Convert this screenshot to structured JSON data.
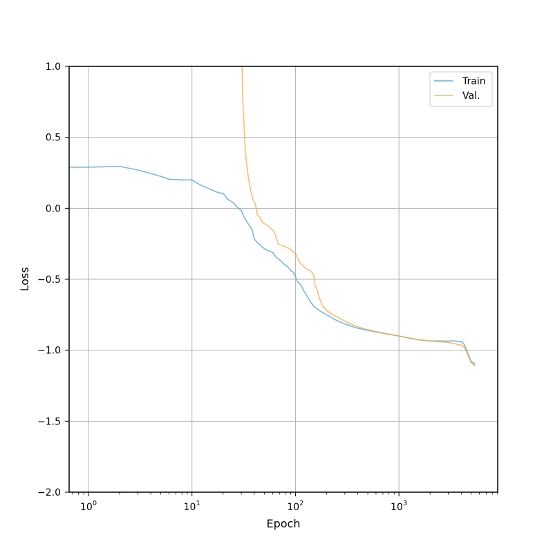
{
  "chart_data": {
    "type": "line",
    "title": "",
    "xlabel": "Epoch",
    "ylabel": "Loss",
    "xscale": "log",
    "xlim": [
      0.65,
      9000
    ],
    "ylim": [
      -2.0,
      1.0
    ],
    "grid": true,
    "legend_position": "top-right",
    "x_ticks": [
      1,
      10,
      100,
      1000
    ],
    "x_tick_labels": [
      {
        "base": "10",
        "exp": "0"
      },
      {
        "base": "10",
        "exp": "1"
      },
      {
        "base": "10",
        "exp": "2"
      },
      {
        "base": "10",
        "exp": "3"
      }
    ],
    "y_ticks": [
      1.0,
      0.5,
      0.0,
      -0.5,
      -1.0,
      -1.5,
      -2.0
    ],
    "y_tick_labels": [
      "1.0",
      "0.5",
      "0.0",
      "−0.5",
      "−1.0",
      "−1.5",
      "−2.0"
    ],
    "series": [
      {
        "name": "Train",
        "color": "#6baed6",
        "x": [
          0.65,
          1,
          2,
          3,
          4,
          5,
          6,
          8,
          10,
          12,
          15,
          18,
          20,
          22,
          25,
          28,
          30,
          32,
          35,
          38,
          40,
          42,
          45,
          50,
          55,
          60,
          65,
          70,
          75,
          80,
          85,
          90,
          95,
          100,
          105,
          110,
          115,
          120,
          130,
          140,
          150,
          170,
          200,
          250,
          300,
          400,
          500,
          700,
          1000,
          1500,
          2000,
          3000,
          3500,
          4000,
          4300,
          4600,
          5000,
          5500
        ],
        "y": [
          0.29,
          0.29,
          0.295,
          0.27,
          0.245,
          0.225,
          0.205,
          0.2,
          0.2,
          0.165,
          0.135,
          0.11,
          0.105,
          0.065,
          0.04,
          0.0,
          -0.015,
          -0.065,
          -0.11,
          -0.15,
          -0.215,
          -0.235,
          -0.255,
          -0.285,
          -0.3,
          -0.31,
          -0.345,
          -0.36,
          -0.385,
          -0.4,
          -0.415,
          -0.44,
          -0.45,
          -0.48,
          -0.52,
          -0.53,
          -0.55,
          -0.58,
          -0.62,
          -0.66,
          -0.69,
          -0.72,
          -0.75,
          -0.79,
          -0.815,
          -0.845,
          -0.86,
          -0.88,
          -0.9,
          -0.925,
          -0.935,
          -0.935,
          -0.935,
          -0.94,
          -0.96,
          -1.02,
          -1.08,
          -1.1
        ]
      },
      {
        "name": "Val.",
        "color": "#f5a742",
        "x": [
          30.5,
          31,
          32,
          33,
          35,
          37,
          39,
          41,
          43,
          45,
          48,
          52,
          55,
          58,
          62,
          66,
          68,
          72,
          80,
          90,
          100,
          110,
          120,
          130,
          140,
          150,
          155,
          160,
          170,
          180,
          200,
          230,
          260,
          300,
          400,
          500,
          700,
          1000,
          1500,
          2000,
          3000,
          3500,
          4000,
          4300,
          4600,
          5000,
          5500
        ],
        "y": [
          1.0,
          0.75,
          0.55,
          0.38,
          0.22,
          0.12,
          0.06,
          0.03,
          -0.05,
          -0.06,
          -0.1,
          -0.115,
          -0.125,
          -0.145,
          -0.16,
          -0.22,
          -0.25,
          -0.26,
          -0.27,
          -0.29,
          -0.32,
          -0.38,
          -0.41,
          -0.43,
          -0.44,
          -0.47,
          -0.55,
          -0.56,
          -0.63,
          -0.68,
          -0.72,
          -0.75,
          -0.77,
          -0.795,
          -0.835,
          -0.855,
          -0.88,
          -0.9,
          -0.925,
          -0.935,
          -0.945,
          -0.955,
          -0.965,
          -0.98,
          -1.03,
          -1.09,
          -1.115
        ]
      }
    ]
  }
}
